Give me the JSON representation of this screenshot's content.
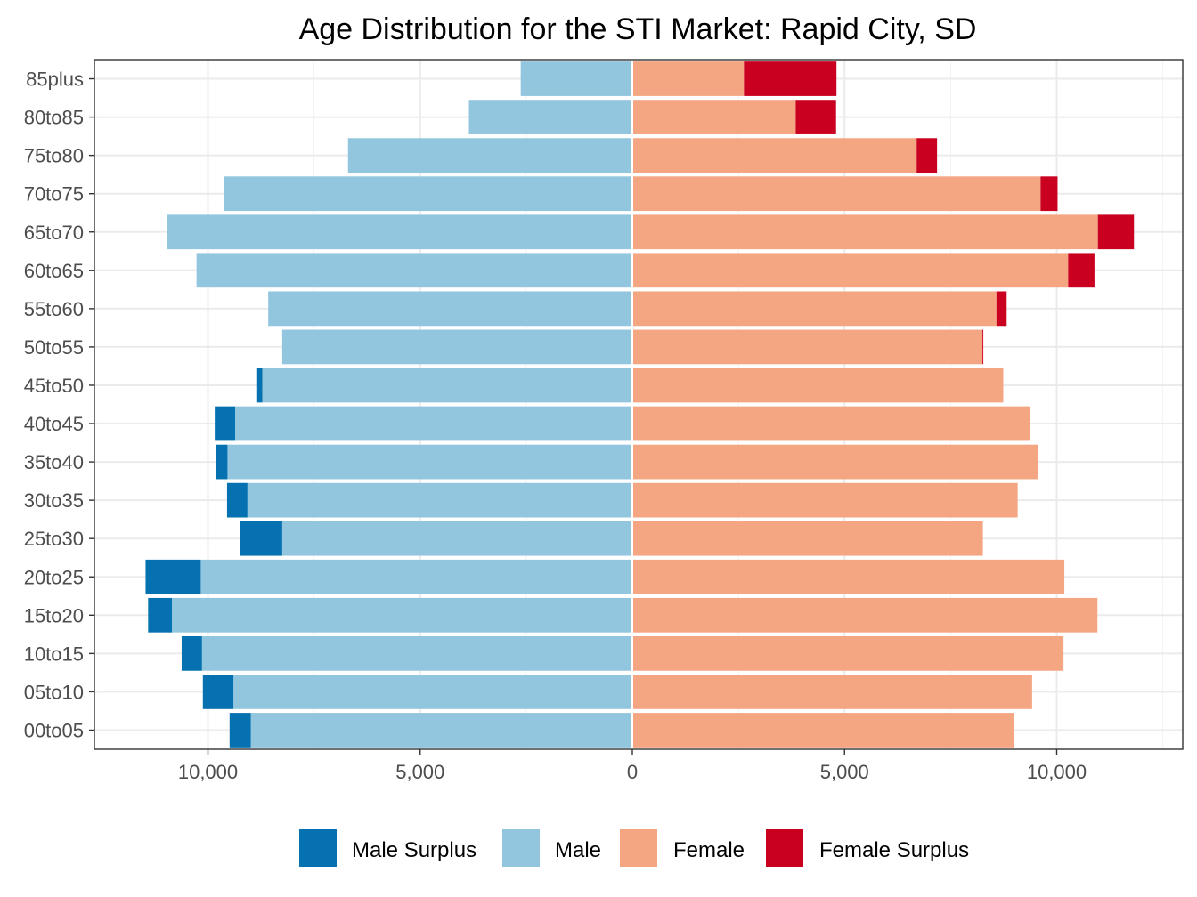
{
  "chart_data": {
    "type": "bar",
    "orientation": "horizontal",
    "title": "Age Distribution for the STI Market: Rapid City, SD",
    "xlabel": "",
    "ylabel": "",
    "xlim": [
      -12650,
      12650
    ],
    "x_ticks": [
      -10000,
      -5000,
      0,
      5000,
      10000
    ],
    "x_tick_labels": [
      "10,000",
      "5,000",
      "0",
      "5,000",
      "10,000"
    ],
    "grid": true,
    "legend_position": "bottom",
    "categories": [
      "85plus",
      "80to85",
      "75to80",
      "70to75",
      "65to70",
      "60to65",
      "55to60",
      "50to55",
      "45to50",
      "40to45",
      "35to40",
      "30to35",
      "25to30",
      "20to25",
      "15to20",
      "10to15",
      "05to10",
      "00to05"
    ],
    "series": [
      {
        "name": "Male Surplus",
        "color": "#0571b0",
        "values": [
          0,
          0,
          0,
          0,
          0,
          0,
          0,
          0,
          120,
          480,
          280,
          480,
          1000,
          1300,
          560,
          480,
          720,
          500
        ]
      },
      {
        "name": "Male",
        "color": "#92c5de",
        "values": [
          2630,
          3850,
          6700,
          9620,
          10970,
          10270,
          8580,
          8250,
          8720,
          9360,
          9540,
          9070,
          8250,
          10170,
          10850,
          10140,
          9400,
          8990
        ]
      },
      {
        "name": "Female",
        "color": "#f4a582",
        "values": [
          2630,
          3850,
          6700,
          9620,
          10970,
          10270,
          8580,
          8250,
          8740,
          9370,
          9560,
          9080,
          8260,
          10180,
          10960,
          10160,
          9420,
          9000
        ]
      },
      {
        "name": "Female Surplus",
        "color": "#ca0020",
        "values": [
          2180,
          950,
          480,
          400,
          850,
          620,
          240,
          20,
          0,
          0,
          0,
          0,
          0,
          0,
          0,
          0,
          0,
          0
        ]
      }
    ]
  }
}
